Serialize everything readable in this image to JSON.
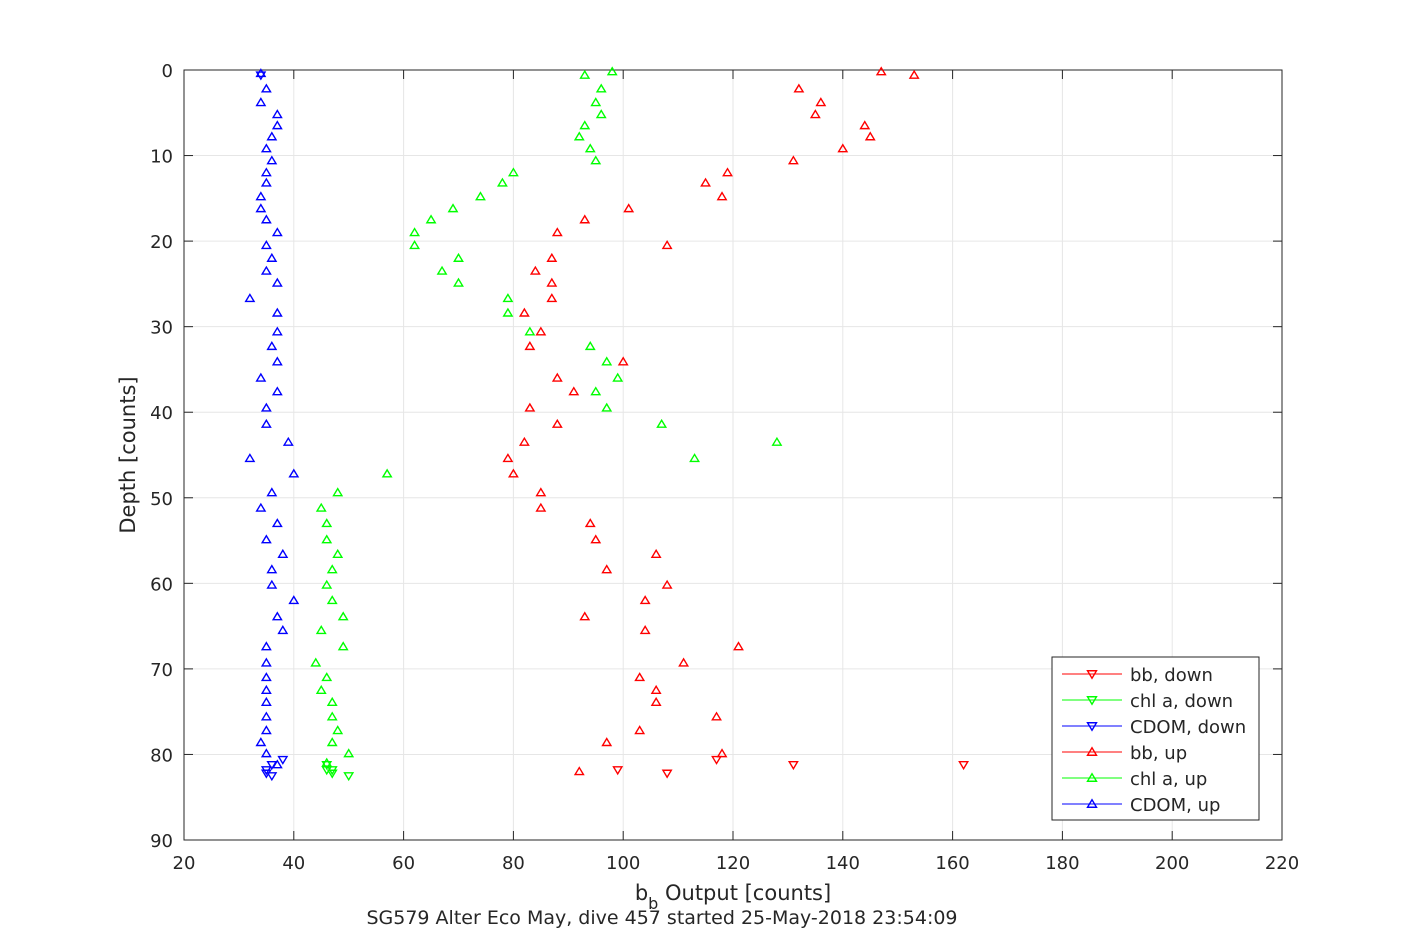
{
  "chart_data": {
    "type": "scatter",
    "title": "",
    "xlabel_main": "b",
    "xlabel_sub": "b",
    "xlabel_rest": " Output [counts]",
    "ylabel": "Depth [counts]",
    "caption": "SG579 Alter Eco May, dive 457 started 25-May-2018 23:54:09",
    "xlim": [
      20,
      220
    ],
    "ylim": [
      90,
      0
    ],
    "y_reversed": true,
    "xticks": [
      20,
      40,
      60,
      80,
      100,
      120,
      140,
      160,
      180,
      200,
      220
    ],
    "yticks": [
      0,
      10,
      20,
      30,
      40,
      50,
      60,
      70,
      80,
      90
    ],
    "grid": true,
    "legend_position": "bottom-right",
    "series": [
      {
        "name": "bb, down",
        "color": "#ff0000",
        "marker": "triangle-down",
        "points": [
          [
            162,
            81.2
          ],
          [
            131,
            81.2
          ],
          [
            117,
            80.6
          ],
          [
            108,
            82.2
          ],
          [
            99,
            81.8
          ]
        ]
      },
      {
        "name": "chl a, down",
        "color": "#00ff00",
        "marker": "triangle-down",
        "points": [
          [
            50,
            82.5
          ],
          [
            47,
            82.2
          ],
          [
            46,
            81.8
          ],
          [
            46,
            81.2
          ],
          [
            47,
            81.8
          ]
        ]
      },
      {
        "name": "CDOM, down",
        "color": "#0000ff",
        "marker": "triangle-down",
        "points": [
          [
            38,
            80.6
          ],
          [
            36,
            81.2
          ],
          [
            35,
            81.8
          ],
          [
            35,
            82.2
          ],
          [
            36,
            82.5
          ],
          [
            34,
            0.6
          ]
        ]
      },
      {
        "name": "bb, up",
        "color": "#ff0000",
        "marker": "triangle-up",
        "points": [
          [
            153,
            0.6
          ],
          [
            147,
            0.2
          ],
          [
            132,
            2.2
          ],
          [
            136,
            3.8
          ],
          [
            135,
            5.2
          ],
          [
            144,
            6.5
          ],
          [
            145,
            7.8
          ],
          [
            140,
            9.2
          ],
          [
            131,
            10.6
          ],
          [
            119,
            12.0
          ],
          [
            115,
            13.2
          ],
          [
            118,
            14.8
          ],
          [
            101,
            16.2
          ],
          [
            93,
            17.5
          ],
          [
            88,
            19.0
          ],
          [
            108,
            20.5
          ],
          [
            87,
            22.0
          ],
          [
            84,
            23.5
          ],
          [
            87,
            24.9
          ],
          [
            87,
            26.7
          ],
          [
            82,
            28.4
          ],
          [
            85,
            30.6
          ],
          [
            83,
            32.3
          ],
          [
            100,
            34.1
          ],
          [
            88,
            36.0
          ],
          [
            91,
            37.6
          ],
          [
            83,
            39.5
          ],
          [
            88,
            41.4
          ],
          [
            82,
            43.5
          ],
          [
            79,
            45.4
          ],
          [
            80,
            47.2
          ],
          [
            85,
            49.4
          ],
          [
            85,
            51.2
          ],
          [
            94,
            53.0
          ],
          [
            95,
            54.9
          ],
          [
            106,
            56.6
          ],
          [
            97,
            58.4
          ],
          [
            108,
            60.2
          ],
          [
            104,
            62.0
          ],
          [
            93,
            63.9
          ],
          [
            104,
            65.5
          ],
          [
            121,
            67.4
          ],
          [
            111,
            69.3
          ],
          [
            103,
            71.0
          ],
          [
            106,
            72.5
          ],
          [
            106,
            73.9
          ],
          [
            117,
            75.6
          ],
          [
            103,
            77.2
          ],
          [
            97,
            78.6
          ],
          [
            118,
            79.9
          ],
          [
            92,
            82.0
          ]
        ]
      },
      {
        "name": "chl a, up",
        "color": "#00ff00",
        "marker": "triangle-up",
        "points": [
          [
            98,
            0.2
          ],
          [
            93,
            0.6
          ],
          [
            96,
            2.2
          ],
          [
            95,
            3.8
          ],
          [
            96,
            5.2
          ],
          [
            93,
            6.5
          ],
          [
            92,
            7.8
          ],
          [
            94,
            9.2
          ],
          [
            95,
            10.6
          ],
          [
            80,
            12.0
          ],
          [
            78,
            13.2
          ],
          [
            74,
            14.8
          ],
          [
            69,
            16.2
          ],
          [
            65,
            17.5
          ],
          [
            62,
            19.0
          ],
          [
            62,
            20.5
          ],
          [
            70,
            22.0
          ],
          [
            67,
            23.5
          ],
          [
            70,
            24.9
          ],
          [
            79,
            26.7
          ],
          [
            79,
            28.4
          ],
          [
            83,
            30.6
          ],
          [
            94,
            32.3
          ],
          [
            97,
            34.1
          ],
          [
            99,
            36.0
          ],
          [
            95,
            37.6
          ],
          [
            97,
            39.5
          ],
          [
            107,
            41.4
          ],
          [
            128,
            43.5
          ],
          [
            113,
            45.4
          ],
          [
            57,
            47.2
          ],
          [
            48,
            49.4
          ],
          [
            45,
            51.2
          ],
          [
            46,
            53.0
          ],
          [
            46,
            54.9
          ],
          [
            48,
            56.6
          ],
          [
            47,
            58.4
          ],
          [
            46,
            60.2
          ],
          [
            47,
            62.0
          ],
          [
            49,
            63.9
          ],
          [
            45,
            65.5
          ],
          [
            49,
            67.4
          ],
          [
            44,
            69.3
          ],
          [
            46,
            71.0
          ],
          [
            45,
            72.5
          ],
          [
            47,
            73.9
          ],
          [
            47,
            75.6
          ],
          [
            48,
            77.2
          ],
          [
            47,
            78.6
          ],
          [
            50,
            79.9
          ],
          [
            46,
            81.0
          ]
        ]
      },
      {
        "name": "CDOM, up",
        "color": "#0000ff",
        "marker": "triangle-up",
        "points": [
          [
            34,
            0.4
          ],
          [
            35,
            2.2
          ],
          [
            34,
            3.8
          ],
          [
            37,
            5.2
          ],
          [
            37,
            6.5
          ],
          [
            36,
            7.8
          ],
          [
            35,
            9.2
          ],
          [
            36,
            10.6
          ],
          [
            35,
            12.0
          ],
          [
            35,
            13.2
          ],
          [
            34,
            14.8
          ],
          [
            34,
            16.2
          ],
          [
            35,
            17.5
          ],
          [
            37,
            19.0
          ],
          [
            35,
            20.5
          ],
          [
            36,
            22.0
          ],
          [
            35,
            23.5
          ],
          [
            37,
            24.9
          ],
          [
            32,
            26.7
          ],
          [
            37,
            28.4
          ],
          [
            37,
            30.6
          ],
          [
            36,
            32.3
          ],
          [
            37,
            34.1
          ],
          [
            34,
            36.0
          ],
          [
            37,
            37.6
          ],
          [
            35,
            39.5
          ],
          [
            35,
            41.4
          ],
          [
            39,
            43.5
          ],
          [
            32,
            45.4
          ],
          [
            40,
            47.2
          ],
          [
            36,
            49.4
          ],
          [
            34,
            51.2
          ],
          [
            37,
            53.0
          ],
          [
            35,
            54.9
          ],
          [
            38,
            56.6
          ],
          [
            36,
            58.4
          ],
          [
            36,
            60.2
          ],
          [
            40,
            62.0
          ],
          [
            37,
            63.9
          ],
          [
            38,
            65.5
          ],
          [
            35,
            67.4
          ],
          [
            35,
            69.3
          ],
          [
            35,
            71.0
          ],
          [
            35,
            72.5
          ],
          [
            35,
            73.9
          ],
          [
            35,
            75.6
          ],
          [
            35,
            77.2
          ],
          [
            34,
            78.6
          ],
          [
            35,
            79.9
          ],
          [
            37,
            81.2
          ]
        ]
      }
    ]
  }
}
